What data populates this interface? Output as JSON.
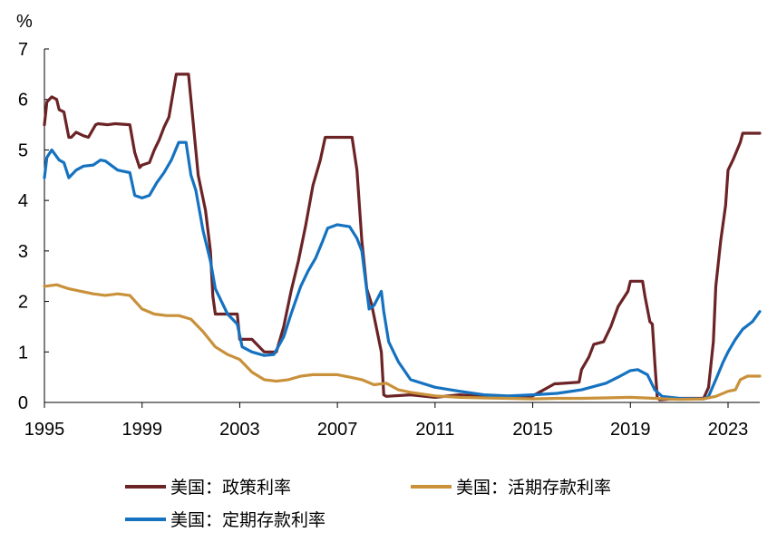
{
  "chart_data": {
    "type": "line",
    "ylabel": "%",
    "ylim": [
      0,
      7
    ],
    "yticks": [
      "0",
      "1",
      "2",
      "3",
      "4",
      "5",
      "6",
      "7"
    ],
    "xlim": [
      1995,
      2024.3
    ],
    "xticks": [
      "1995",
      "1999",
      "2003",
      "2007",
      "2011",
      "2015",
      "2019",
      "2023"
    ],
    "grid": false,
    "legend_position": "bottom",
    "series": [
      {
        "name": "美国：政策利率",
        "color": "#6b2326",
        "x": [
          1995.0,
          1995.1,
          1995.3,
          1995.5,
          1995.6,
          1995.8,
          1996.0,
          1996.1,
          1996.3,
          1996.6,
          1996.8,
          1997.1,
          1997.2,
          1997.6,
          1997.9,
          1998.5,
          1998.7,
          1998.9,
          1999.0,
          1999.3,
          1999.5,
          1999.7,
          1999.9,
          2000.1,
          2000.4,
          2000.6,
          2000.9,
          2001.0,
          2001.1,
          2001.3,
          2001.6,
          2001.8,
          2001.9,
          2002.0,
          2002.4,
          2002.9,
          2003.0,
          2003.5,
          2004.0,
          2004.5,
          2004.8,
          2005.1,
          2005.4,
          2005.7,
          2006.0,
          2006.3,
          2006.5,
          2007.0,
          2007.6,
          2007.8,
          2008.0,
          2008.2,
          2008.4,
          2008.8,
          2008.9,
          2009.0,
          2010.0,
          2011.0,
          2012.0,
          2013.0,
          2014.0,
          2015.0,
          2015.9,
          2016.0,
          2016.9,
          2017.0,
          2017.3,
          2017.5,
          2017.9,
          2018.2,
          2018.5,
          2018.9,
          2019.0,
          2019.5,
          2019.6,
          2019.8,
          2019.9,
          2020.0,
          2020.1,
          2020.2,
          2021.0,
          2022.0,
          2022.2,
          2022.4,
          2022.5,
          2022.7,
          2022.9,
          2023.0,
          2023.2,
          2023.5,
          2023.6,
          2024.3
        ],
        "y": [
          5.5,
          5.95,
          6.05,
          6.0,
          5.8,
          5.75,
          5.25,
          5.25,
          5.35,
          5.28,
          5.25,
          5.5,
          5.52,
          5.5,
          5.52,
          5.5,
          4.95,
          4.65,
          4.7,
          4.75,
          5.0,
          5.2,
          5.45,
          5.65,
          6.5,
          6.5,
          6.5,
          6.0,
          5.5,
          4.5,
          3.8,
          3.0,
          2.1,
          1.75,
          1.75,
          1.75,
          1.25,
          1.25,
          1.0,
          1.0,
          1.5,
          2.2,
          2.8,
          3.5,
          4.3,
          4.8,
          5.25,
          5.25,
          5.25,
          4.6,
          3.2,
          2.25,
          1.95,
          1.0,
          0.15,
          0.12,
          0.15,
          0.1,
          0.15,
          0.12,
          0.1,
          0.13,
          0.37,
          0.37,
          0.4,
          0.65,
          0.9,
          1.15,
          1.2,
          1.5,
          1.9,
          2.2,
          2.4,
          2.4,
          2.1,
          1.6,
          1.55,
          0.8,
          0.1,
          0.05,
          0.08,
          0.08,
          0.3,
          1.2,
          2.3,
          3.2,
          3.9,
          4.6,
          4.8,
          5.15,
          5.33,
          5.33
        ]
      },
      {
        "name": "美国：定期存款利率",
        "color": "#1572c0",
        "x": [
          1995.0,
          1995.1,
          1995.3,
          1995.6,
          1995.8,
          1996.0,
          1996.3,
          1996.6,
          1997.0,
          1997.3,
          1997.5,
          1998.0,
          1998.5,
          1998.7,
          1999.0,
          1999.3,
          1999.6,
          1999.9,
          2000.2,
          2000.5,
          2000.8,
          2001.0,
          2001.2,
          2001.5,
          2001.8,
          2002.0,
          2002.5,
          2002.9,
          2003.1,
          2003.5,
          2004.0,
          2004.4,
          2004.8,
          2005.1,
          2005.5,
          2005.8,
          2006.1,
          2006.4,
          2006.6,
          2007.0,
          2007.5,
          2007.8,
          2008.0,
          2008.3,
          2008.5,
          2008.8,
          2008.9,
          2009.1,
          2009.5,
          2010.0,
          2011.0,
          2012.0,
          2013.0,
          2014.0,
          2015.0,
          2016.0,
          2017.0,
          2018.0,
          2018.5,
          2019.0,
          2019.3,
          2019.7,
          2020.0,
          2020.3,
          2021.0,
          2022.0,
          2022.2,
          2022.5,
          2022.8,
          2023.0,
          2023.3,
          2023.6,
          2024.0,
          2024.3
        ],
        "y": [
          4.45,
          4.85,
          5.0,
          4.8,
          4.75,
          4.45,
          4.6,
          4.68,
          4.7,
          4.8,
          4.78,
          4.6,
          4.55,
          4.1,
          4.05,
          4.1,
          4.35,
          4.55,
          4.8,
          5.15,
          5.15,
          4.5,
          4.2,
          3.4,
          2.8,
          2.25,
          1.75,
          1.55,
          1.1,
          1.0,
          0.93,
          0.95,
          1.3,
          1.75,
          2.3,
          2.6,
          2.85,
          3.2,
          3.45,
          3.52,
          3.48,
          3.25,
          3.0,
          1.85,
          1.92,
          2.2,
          1.8,
          1.2,
          0.8,
          0.45,
          0.3,
          0.22,
          0.15,
          0.13,
          0.15,
          0.18,
          0.25,
          0.38,
          0.5,
          0.63,
          0.65,
          0.55,
          0.25,
          0.12,
          0.08,
          0.07,
          0.12,
          0.45,
          0.8,
          1.0,
          1.25,
          1.45,
          1.6,
          1.8
        ]
      },
      {
        "name": "美国：活期存款利率",
        "color": "#c9913a",
        "x": [
          1995.0,
          1995.5,
          1996.0,
          1996.5,
          1997.0,
          1997.5,
          1998.0,
          1998.5,
          1999.0,
          1999.5,
          2000.0,
          2000.5,
          2001.0,
          2001.5,
          2002.0,
          2002.5,
          2003.0,
          2003.5,
          2004.0,
          2004.5,
          2005.0,
          2005.5,
          2006.0,
          2006.5,
          2007.0,
          2007.5,
          2008.0,
          2008.5,
          2009.0,
          2009.5,
          2010.0,
          2011.0,
          2012.0,
          2013.0,
          2014.0,
          2015.0,
          2016.0,
          2017.0,
          2018.0,
          2019.0,
          2020.0,
          2021.0,
          2022.0,
          2022.5,
          2023.0,
          2023.3,
          2023.5,
          2023.8,
          2024.3
        ],
        "y": [
          2.3,
          2.33,
          2.25,
          2.2,
          2.15,
          2.12,
          2.15,
          2.12,
          1.85,
          1.75,
          1.72,
          1.72,
          1.65,
          1.4,
          1.1,
          0.95,
          0.85,
          0.6,
          0.45,
          0.42,
          0.45,
          0.52,
          0.55,
          0.55,
          0.55,
          0.5,
          0.45,
          0.35,
          0.38,
          0.25,
          0.2,
          0.13,
          0.1,
          0.09,
          0.08,
          0.07,
          0.08,
          0.08,
          0.09,
          0.1,
          0.08,
          0.06,
          0.07,
          0.12,
          0.22,
          0.25,
          0.45,
          0.52,
          0.52
        ]
      }
    ]
  }
}
